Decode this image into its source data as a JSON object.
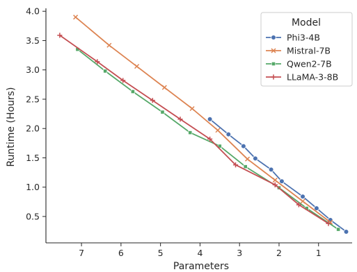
{
  "chart_data": {
    "type": "line",
    "title": "",
    "xlabel": "Parameters",
    "ylabel": "Runtime (Hours)",
    "x_inverted": true,
    "xlim": [
      7.9,
      0.15
    ],
    "ylim": [
      0.05,
      4.05
    ],
    "xticks": [
      7,
      6,
      5,
      4,
      3,
      2,
      1
    ],
    "yticks": [
      0.5,
      1.0,
      1.5,
      2.0,
      2.5,
      3.0,
      3.5,
      4.0
    ],
    "ytick_labels": [
      "0.5",
      "1.0",
      "1.5",
      "2.0",
      "2.5",
      "3.0",
      "3.5",
      "4.0"
    ],
    "grid": false,
    "legend": {
      "title": "Model",
      "placement": "top-right"
    },
    "series": [
      {
        "name": "Phi3-4B",
        "color": "#4c72b0",
        "marker": "circle",
        "x": [
          3.75,
          3.28,
          2.9,
          2.6,
          2.2,
          1.93,
          1.4,
          1.05,
          0.7,
          0.3
        ],
        "y": [
          2.16,
          1.9,
          1.7,
          1.49,
          1.3,
          1.1,
          0.84,
          0.64,
          0.44,
          0.24
        ]
      },
      {
        "name": "Mistral-7B",
        "color": "#dd8452",
        "marker": "x",
        "x": [
          7.15,
          6.3,
          5.6,
          4.9,
          4.2,
          3.55,
          2.8,
          2.1,
          1.4,
          0.7
        ],
        "y": [
          3.9,
          3.42,
          3.06,
          2.7,
          2.34,
          1.97,
          1.48,
          1.12,
          0.76,
          0.4
        ]
      },
      {
        "name": "Qwen2-7B",
        "color": "#55a868",
        "marker": "square",
        "x": [
          7.1,
          6.4,
          5.7,
          4.95,
          4.25,
          3.5,
          2.85,
          2.0,
          1.3,
          0.5
        ],
        "y": [
          3.35,
          2.98,
          2.63,
          2.28,
          1.93,
          1.7,
          1.35,
          0.99,
          0.64,
          0.28
        ]
      },
      {
        "name": "LLaMA-3-8B",
        "color": "#c44e52",
        "marker": "plus",
        "x": [
          7.55,
          6.6,
          5.95,
          5.2,
          4.5,
          3.75,
          3.1,
          2.1,
          1.5,
          0.75
        ],
        "y": [
          3.59,
          3.14,
          2.82,
          2.48,
          2.16,
          1.82,
          1.38,
          1.04,
          0.7,
          0.38
        ]
      }
    ]
  }
}
